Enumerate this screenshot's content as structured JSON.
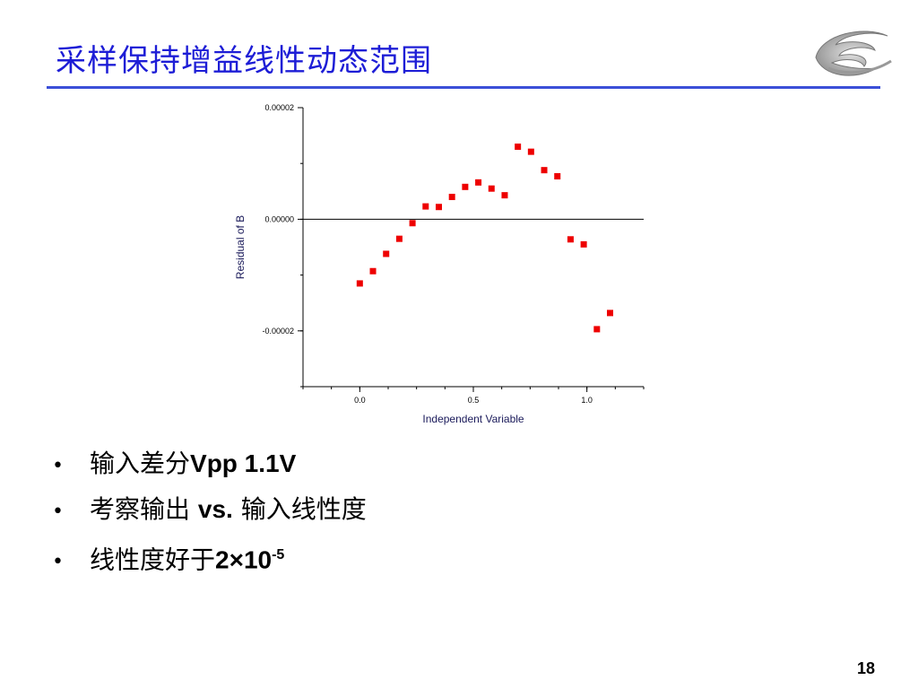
{
  "slide": {
    "title": "采样保持增益线性动态范围",
    "page_number": "18"
  },
  "bullets": [
    {
      "cjk": "输入差分",
      "latin": "Vpp 1.1V",
      "after": ""
    },
    {
      "cjk": "考察输出 ",
      "latin": "vs.",
      "after": " 输入线性度"
    },
    {
      "cjk": "线性度好于",
      "latin": "2×10",
      "sup": "-5"
    }
  ],
  "colors": {
    "title": "#1d1dd6",
    "rule": "#3b4fd8",
    "marker": "#ee0000"
  },
  "chart_data": {
    "type": "scatter",
    "xlabel": "Independent Variable",
    "ylabel": "Residual of B",
    "xlim": [
      -0.25,
      1.25
    ],
    "ylim": [
      -3e-05,
      2e-05
    ],
    "xticks": [
      {
        "value": 0.0,
        "label": "0.0"
      },
      {
        "value": 0.5,
        "label": "0.5"
      },
      {
        "value": 1.0,
        "label": "1.0"
      }
    ],
    "yticks": [
      {
        "value": 2e-05,
        "label": "0.00002"
      },
      {
        "value": 0.0,
        "label": "0.00000"
      },
      {
        "value": -2e-05,
        "label": "-0.00002"
      }
    ],
    "reference_line_y": 0,
    "grid": false,
    "points": [
      {
        "x": 0.0,
        "y": -1.15e-05
      },
      {
        "x": 0.058,
        "y": -9.3e-06
      },
      {
        "x": 0.116,
        "y": -6.2e-06
      },
      {
        "x": 0.174,
        "y": -3.5e-06
      },
      {
        "x": 0.232,
        "y": -7e-07
      },
      {
        "x": 0.29,
        "y": 2.3e-06
      },
      {
        "x": 0.348,
        "y": 2.2e-06
      },
      {
        "x": 0.406,
        "y": 4e-06
      },
      {
        "x": 0.464,
        "y": 5.8e-06
      },
      {
        "x": 0.522,
        "y": 6.6e-06
      },
      {
        "x": 0.58,
        "y": 5.5e-06
      },
      {
        "x": 0.638,
        "y": 4.3e-06
      },
      {
        "x": 0.696,
        "y": 1.3e-05
      },
      {
        "x": 0.754,
        "y": 1.21e-05
      },
      {
        "x": 0.812,
        "y": 8.8e-06
      },
      {
        "x": 0.87,
        "y": 7.7e-06
      },
      {
        "x": 0.928,
        "y": -3.6e-06
      },
      {
        "x": 0.986,
        "y": -4.5e-06
      },
      {
        "x": 1.044,
        "y": -1.97e-05
      },
      {
        "x": 1.102,
        "y": -1.68e-05
      }
    ]
  }
}
